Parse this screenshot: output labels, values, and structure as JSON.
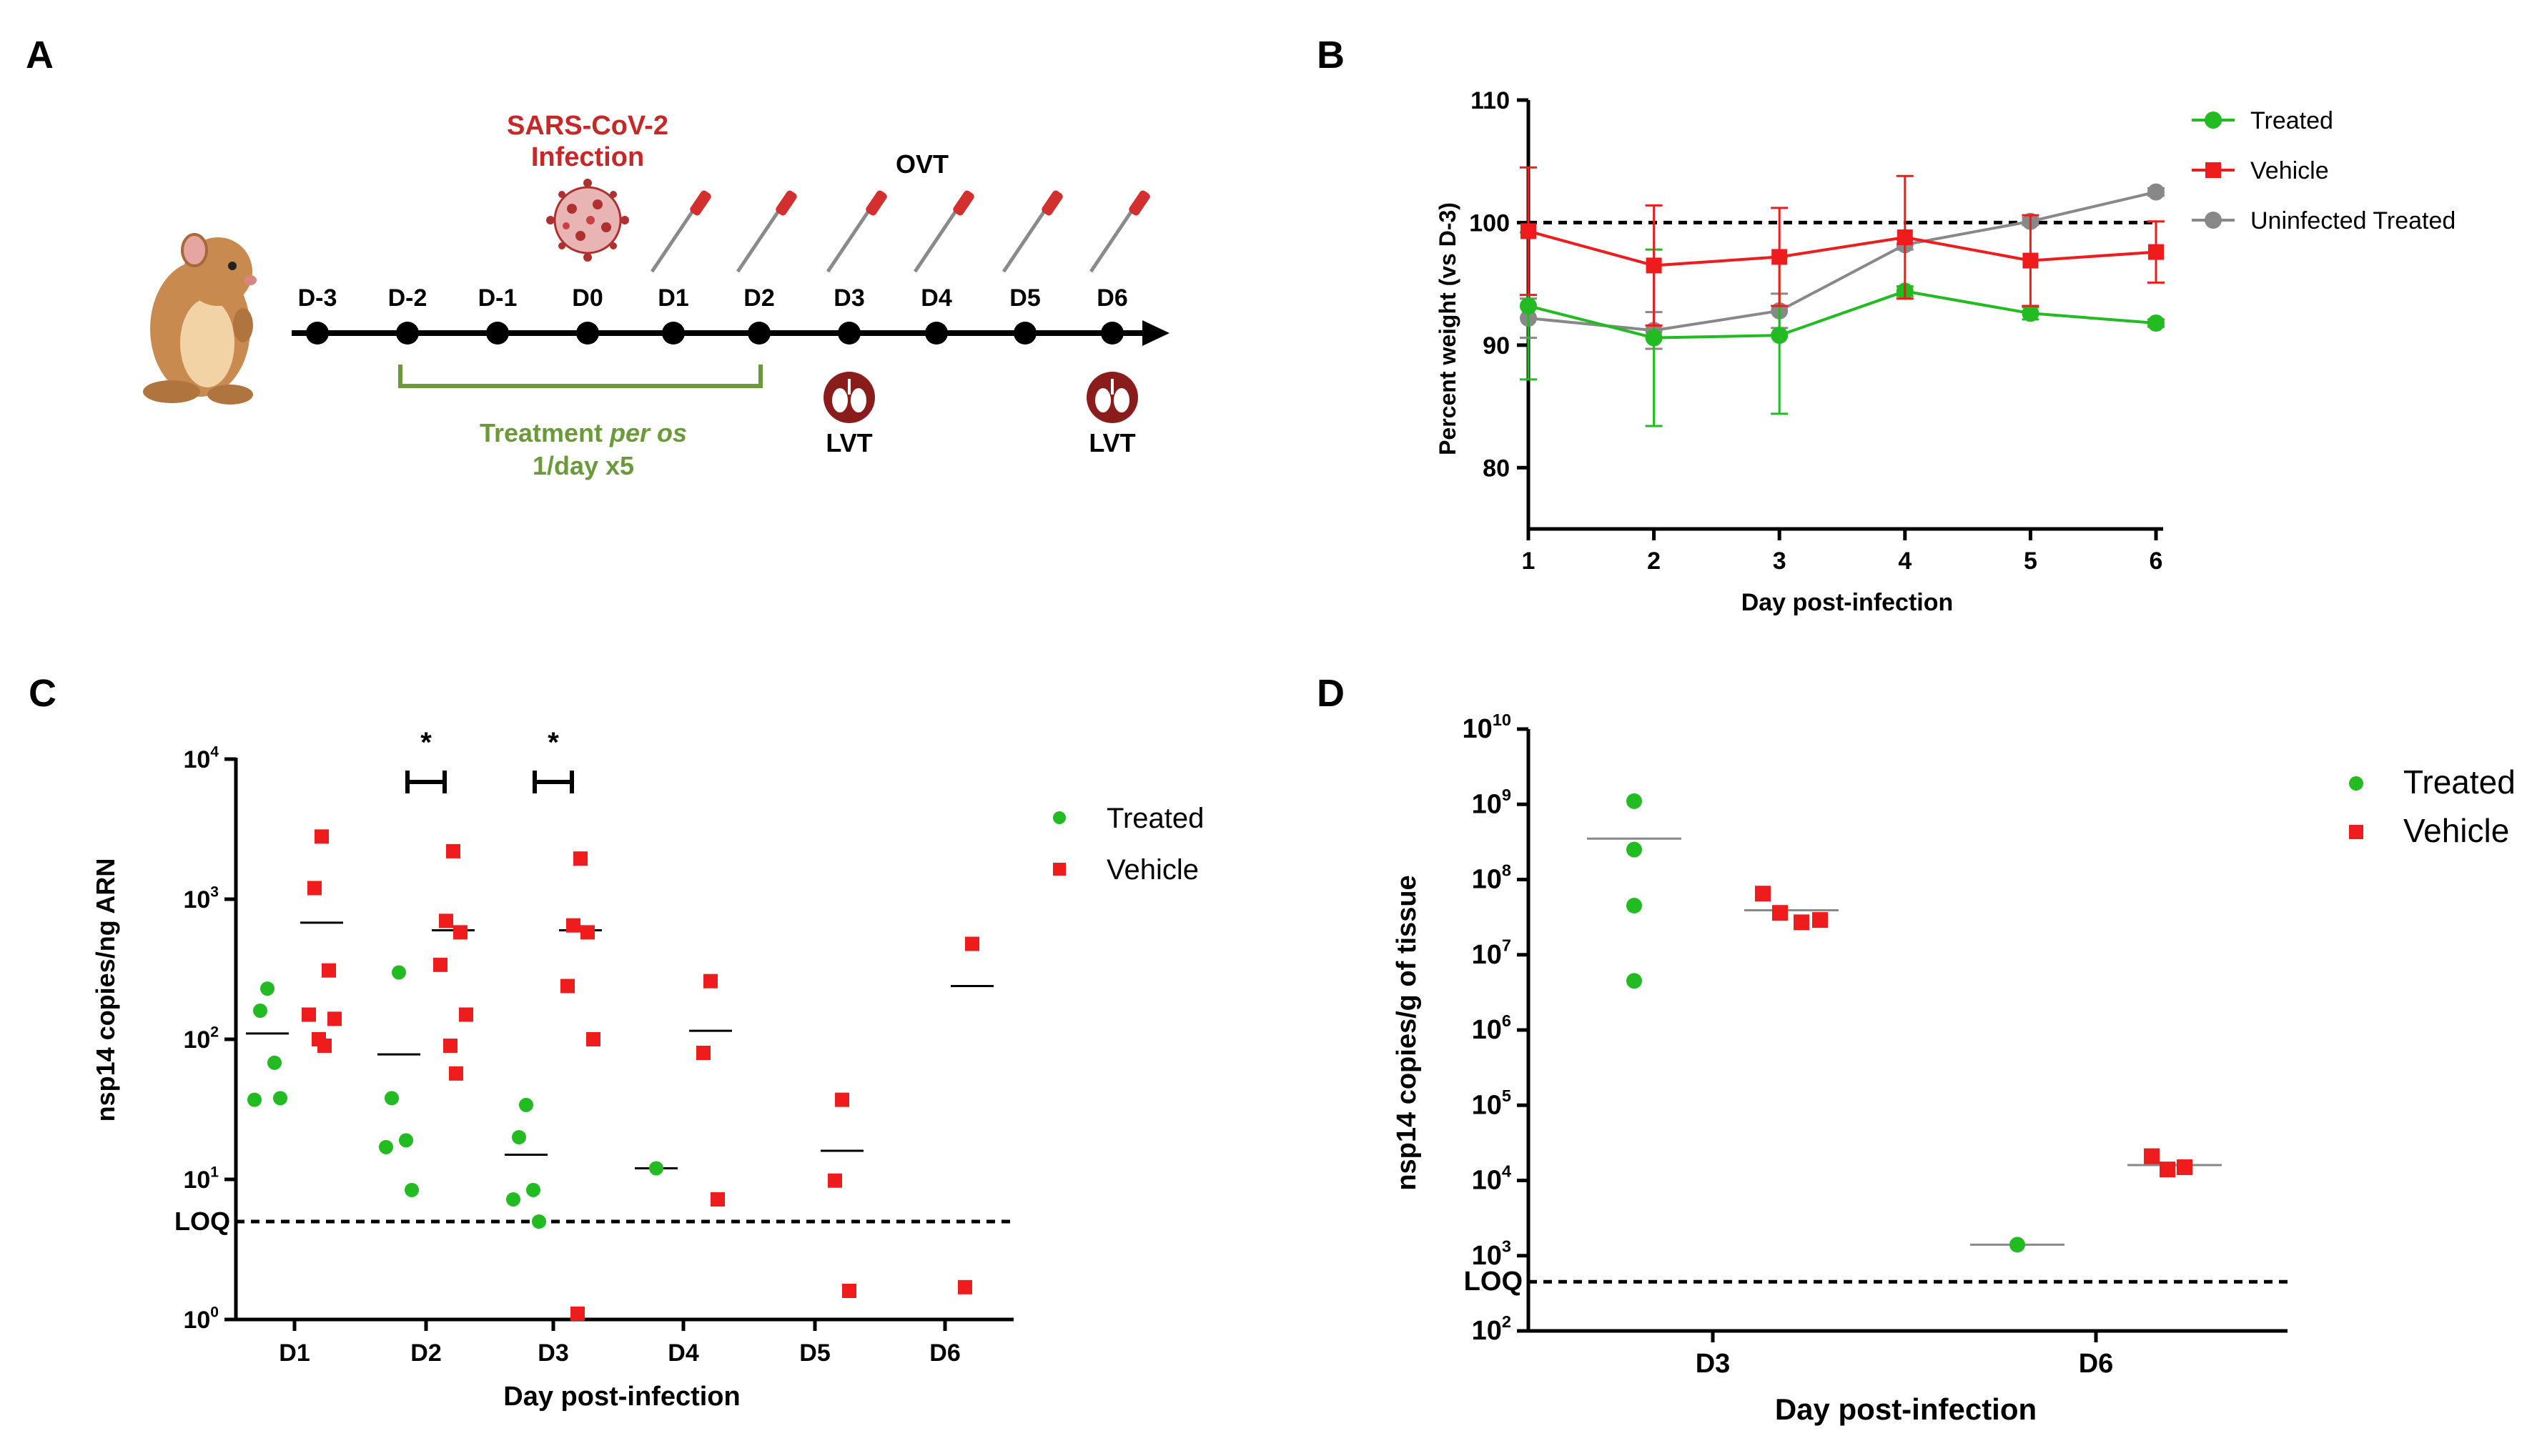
{
  "panel_labels": {
    "a": "A",
    "b": "B",
    "c": "C",
    "d": "D"
  },
  "timeline": {
    "days": [
      "D-3",
      "D-2",
      "D-1",
      "D0",
      "D1",
      "D2",
      "D3",
      "D4",
      "D5",
      "D6"
    ],
    "infection_line1": "SARS-CoV-2",
    "infection_line2": "Infection",
    "ovt_label": "OVT",
    "treatment_label_prefix": "Treatment ",
    "treatment_label_italic": "per os",
    "treatment_label_line2": "1/day x5",
    "lvt_label": "LVT",
    "swab_days": [
      "D1",
      "D2",
      "D3",
      "D4",
      "D5",
      "D6"
    ],
    "lvt_days": [
      "D3",
      "D6"
    ],
    "colors": {
      "infection": "#c62828",
      "treatment": "#6a9a3a",
      "line": "#000000"
    }
  },
  "chart_data": [
    {
      "panel": "B",
      "type": "line",
      "xlabel": "Day post-infection",
      "ylabel": "Percent weight (vs D-3)",
      "x": [
        1,
        2,
        3,
        4,
        5,
        6
      ],
      "xlim": [
        1,
        6
      ],
      "ylim": [
        75,
        110
      ],
      "yticks": [
        80,
        90,
        100,
        110
      ],
      "reference_line": 100,
      "series": [
        {
          "name": "Treated",
          "color": "#22bb22",
          "marker": "circle",
          "values": [
            93.2,
            90.6,
            90.8,
            94.4,
            92.6,
            91.8
          ],
          "err": [
            6,
            7.2,
            6.4,
            0.4,
            0.5,
            0.3
          ]
        },
        {
          "name": "Vehicle",
          "color": "#ee1c1c",
          "marker": "square",
          "values": [
            99.3,
            96.5,
            97.2,
            98.8,
            96.9,
            97.6
          ],
          "err": [
            5.2,
            4.9,
            4,
            5,
            3.7,
            2.5
          ]
        },
        {
          "name": "Uninfected Treated",
          "color": "#888888",
          "marker": "circle",
          "values": [
            92.2,
            91.2,
            92.8,
            98.2,
            100.1,
            102.5
          ],
          "err": [
            1.6,
            1.5,
            1.4,
            0.4,
            0.3,
            0.3
          ]
        }
      ]
    },
    {
      "panel": "C",
      "type": "scatter",
      "xlabel": "Day post-infection",
      "ylabel": "nsp14 copies/ng ARN",
      "y_scale": "log",
      "ylim_log10": [
        0,
        4
      ],
      "ytick_exponents": [
        0,
        1,
        2,
        3,
        4
      ],
      "categories": [
        "D1",
        "D2",
        "D3",
        "D4",
        "D5",
        "D6"
      ],
      "loq": 5,
      "loq_label": "LOQ",
      "significance": [
        {
          "category": "D2",
          "label": "*"
        },
        {
          "category": "D3",
          "label": "*"
        }
      ],
      "series": [
        {
          "name": "Treated",
          "color": "#22bb22",
          "marker": "circle",
          "points": [
            [
              "D1",
              230
            ],
            [
              "D1",
              160
            ],
            [
              "D1",
              68
            ],
            [
              "D1",
              37
            ],
            [
              "D1",
              38
            ],
            [
              "D2",
              300
            ],
            [
              "D2",
              38
            ],
            [
              "D2",
              19
            ],
            [
              "D2",
              17
            ],
            [
              "D2",
              8.4
            ],
            [
              "D3",
              34
            ],
            [
              "D3",
              20
            ],
            [
              "D3",
              8.4
            ],
            [
              "D3",
              7.2
            ],
            [
              "D3",
              5
            ],
            [
              "D4",
              12
            ]
          ],
          "medians": [
            [
              "D1",
              110
            ],
            [
              "D2",
              78
            ],
            [
              "D3",
              15
            ],
            [
              "D4",
              12
            ]
          ]
        },
        {
          "name": "Vehicle",
          "color": "#ee1c1c",
          "marker": "square",
          "points": [
            [
              "D1",
              2800
            ],
            [
              "D1",
              1200
            ],
            [
              "D1",
              310
            ],
            [
              "D1",
              150
            ],
            [
              "D1",
              140
            ],
            [
              "D1",
              100
            ],
            [
              "D1",
              90
            ],
            [
              "D2",
              2200
            ],
            [
              "D2",
              700
            ],
            [
              "D2",
              580
            ],
            [
              "D2",
              340
            ],
            [
              "D2",
              150
            ],
            [
              "D2",
              90
            ],
            [
              "D2",
              57
            ],
            [
              "D3",
              1950
            ],
            [
              "D3",
              650
            ],
            [
              "D3",
              580
            ],
            [
              "D3",
              240
            ],
            [
              "D3",
              100
            ],
            [
              "D3",
              1.1
            ],
            [
              "D4",
              260
            ],
            [
              "D4",
              80
            ],
            [
              "D4",
              7.2
            ],
            [
              "D5",
              37
            ],
            [
              "D5",
              9.8
            ],
            [
              "D5",
              1.6
            ],
            [
              "D6",
              480
            ],
            [
              "D6",
              1.7
            ]
          ],
          "medians": [
            [
              "D1",
              680
            ],
            [
              "D2",
              600
            ],
            [
              "D3",
              600
            ],
            [
              "D4",
              115
            ],
            [
              "D5",
              16
            ],
            [
              "D6",
              240
            ]
          ]
        }
      ]
    },
    {
      "panel": "D",
      "type": "scatter",
      "xlabel": "Day post-infection",
      "ylabel": "nsp14 copies/g of tissue",
      "y_scale": "log",
      "ylim_log10": [
        2,
        10
      ],
      "ytick_exponents": [
        2,
        3,
        4,
        5,
        6,
        7,
        8,
        9,
        10
      ],
      "categories": [
        "D3",
        "D6"
      ],
      "loq": 450,
      "loq_label": "LOQ",
      "series": [
        {
          "name": "Treated",
          "color": "#22bb22",
          "marker": "circle",
          "points": [
            [
              "D3",
              1100000000
            ],
            [
              "D3",
              250000000
            ],
            [
              "D3",
              45000000
            ],
            [
              "D3",
              4500000
            ],
            [
              "D6",
              1400
            ]
          ],
          "medians": [
            [
              "D3",
              350000000
            ],
            [
              "D6",
              1400
            ]
          ]
        },
        {
          "name": "Vehicle",
          "color": "#ee1c1c",
          "marker": "square",
          "points": [
            [
              "D3",
              65000000
            ],
            [
              "D3",
              36000000
            ],
            [
              "D3",
              27000000
            ],
            [
              "D3",
              29000000
            ],
            [
              "D6",
              21000
            ],
            [
              "D6",
              14000
            ],
            [
              "D6",
              15000
            ]
          ],
          "medians": [
            [
              "D3",
              39000000
            ],
            [
              "D6",
              16000
            ]
          ]
        }
      ]
    }
  ]
}
